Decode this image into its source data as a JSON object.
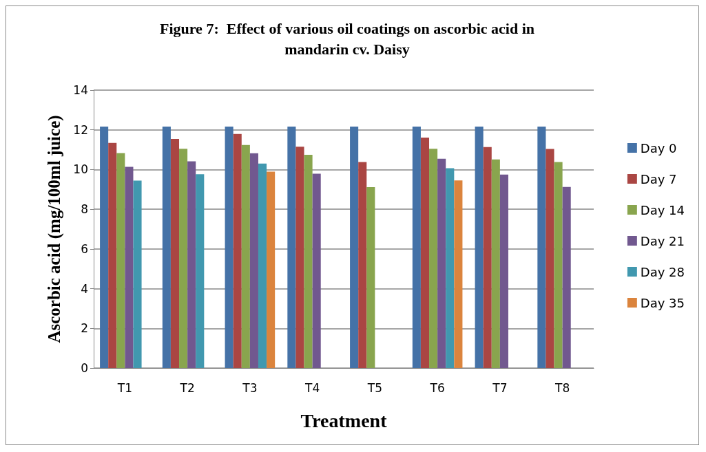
{
  "chart_data": {
    "type": "bar",
    "title": "Figure 7:  Effect of various oil coatings on ascorbic acid in\nmandarin cv. Daisy",
    "xlabel": "Treatment",
    "ylabel": "Ascorbic acid (mg/100ml juice)",
    "categories": [
      "T1",
      "T2",
      "T3",
      "T4",
      "T5",
      "T6",
      "T7",
      "T8"
    ],
    "series": [
      {
        "name": "Day 0",
        "color": "#4572a7",
        "values": [
          12.16,
          12.16,
          12.16,
          12.16,
          12.16,
          12.16,
          12.16,
          12.16
        ]
      },
      {
        "name": "Day 7",
        "color": "#aa4643",
        "values": [
          11.34,
          11.54,
          11.79,
          11.15,
          10.38,
          11.61,
          11.13,
          11.04
        ]
      },
      {
        "name": "Day 14",
        "color": "#89a54e",
        "values": [
          10.83,
          11.05,
          11.24,
          10.74,
          9.11,
          11.05,
          10.51,
          10.38
        ]
      },
      {
        "name": "Day 21",
        "color": "#71588f",
        "values": [
          10.14,
          10.41,
          10.82,
          9.79,
          null,
          10.54,
          9.75,
          9.12
        ]
      },
      {
        "name": "Day 28",
        "color": "#4198af",
        "values": [
          9.44,
          9.76,
          10.3,
          null,
          null,
          10.07,
          null,
          null
        ]
      },
      {
        "name": "Day 35",
        "color": "#db843d",
        "values": [
          null,
          null,
          9.89,
          null,
          null,
          9.45,
          null,
          null
        ]
      }
    ],
    "ylim": [
      0,
      14
    ],
    "yticks": [
      0,
      2,
      4,
      6,
      8,
      10,
      12,
      14
    ],
    "grid": "y",
    "legend": "right"
  }
}
